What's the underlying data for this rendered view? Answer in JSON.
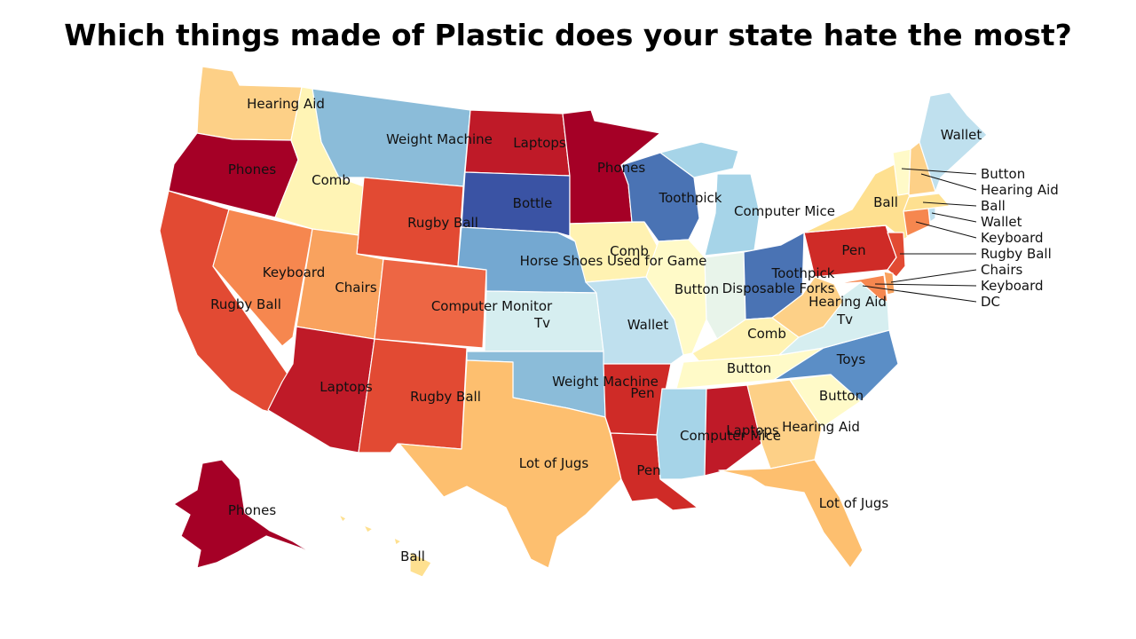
{
  "title": "Which things made of Plastic does your state hate the most?",
  "colors": {
    "dark_red": "#a50026",
    "red": "#c0232a",
    "red_orange": "#e24a33",
    "orange": "#f46d43",
    "light_orange": "#f89c5b",
    "tan": "#fdbf6f",
    "light_yellow": "#fee090",
    "pale_yellow": "#fff4b5",
    "pale_blue": "#d6eef0",
    "light_blue": "#a6d4e8",
    "blue": "#74add1",
    "mid_blue": "#4f86c1",
    "dark_blue": "#3a53a4"
  },
  "states": {
    "WA": {
      "item": "Hearing Aid",
      "color": "#fdd087"
    },
    "OR": {
      "item": "Phones",
      "color": "#a50026"
    },
    "CA": {
      "item": "Rugby Ball",
      "color": "#e24a33"
    },
    "ID": {
      "item": "Comb",
      "color": "#fff4b5"
    },
    "NV": {
      "item": "Keyboard",
      "color": "#f6874f"
    },
    "MT": {
      "item": "Weight Machine",
      "color": "#8bbcd9"
    },
    "WY": {
      "item": "Rugby Ball",
      "color": "#e24a33"
    },
    "UT": {
      "item": "Chairs",
      "color": "#f9a25e"
    },
    "AZ": {
      "item": "Laptops",
      "color": "#bf1a28"
    },
    "CO": {
      "item": "Computer Monitor",
      "color": "#ed6644"
    },
    "NM": {
      "item": "Rugby Ball",
      "color": "#e24a33"
    },
    "ND": {
      "item": "Laptops",
      "color": "#bf1a28"
    },
    "SD": {
      "item": "Bottle",
      "color": "#3a53a4"
    },
    "NE": {
      "item": "Horse Shoes Used for Game",
      "color": "#74a8d1"
    },
    "KS": {
      "item": "Tv",
      "color": "#d6eef0"
    },
    "OK": {
      "item": "Weight Machine",
      "color": "#8bbcd9"
    },
    "TX": {
      "item": "Lot of Jugs",
      "color": "#fdbf6f"
    },
    "MN": {
      "item": "Phones",
      "color": "#a50026"
    },
    "IA": {
      "item": "Comb",
      "color": "#fff2b2"
    },
    "MO": {
      "item": "Wallet",
      "color": "#bfe0ee"
    },
    "AR": {
      "item": "Pen",
      "color": "#cf2b27"
    },
    "LA": {
      "item": "Pen",
      "color": "#cf2b27"
    },
    "WI": {
      "item": "Toothpick",
      "color": "#4a73b4"
    },
    "IL": {
      "item": "Button",
      "color": "#fffac8"
    },
    "MI": {
      "item": "Computer Mice",
      "color": "#a6d4e8"
    },
    "IN": {
      "item": "Disposable Forks",
      "color": "#e8f4ea"
    },
    "OH": {
      "item": "Toothpick",
      "color": "#4a73b4"
    },
    "KY": {
      "item": "Comb",
      "color": "#fff2b2"
    },
    "TN": {
      "item": "Button",
      "color": "#fffac8"
    },
    "MS": {
      "item": "Computer Mice",
      "color": "#a6d4e8"
    },
    "AL": {
      "item": "Laptops",
      "color": "#bf1a28"
    },
    "GA": {
      "item": "Hearing Aid",
      "color": "#fdd087"
    },
    "FL": {
      "item": "Lot of Jugs",
      "color": "#fdbf6f"
    },
    "SC": {
      "item": "Button",
      "color": "#fffac8"
    },
    "NC": {
      "item": "Toys",
      "color": "#5b8ec6"
    },
    "VA": {
      "item": "Tv",
      "color": "#d6eef0"
    },
    "WV": {
      "item": "Hearing Aid",
      "color": "#fdd087"
    },
    "PA": {
      "item": "Pen",
      "color": "#cf2b27"
    },
    "NY": {
      "item": "Ball",
      "color": "#fee090"
    },
    "ME": {
      "item": "Wallet",
      "color": "#bfe0ee"
    },
    "AK": {
      "item": "Phones",
      "color": "#a50026"
    },
    "HI": {
      "item": "Ball",
      "color": "#fee090"
    }
  },
  "northeast_labels": [
    {
      "state": "VT",
      "item": "Button",
      "color": "#fffac8"
    },
    {
      "state": "NH",
      "item": "Hearing Aid",
      "color": "#fdd087"
    },
    {
      "state": "MA",
      "item": "Ball",
      "color": "#fee090"
    },
    {
      "state": "RI",
      "item": "Wallet",
      "color": "#bfe0ee"
    },
    {
      "state": "CT",
      "item": "Keyboard",
      "color": "#f6874f"
    },
    {
      "state": "NJ",
      "item": "Rugby Ball",
      "color": "#e24a33"
    },
    {
      "state": "DE",
      "item": "Chairs",
      "color": "#f9a25e"
    },
    {
      "state": "MD",
      "item": "Keyboard",
      "color": "#f6874f"
    },
    {
      "state": "DC",
      "item": "DC",
      "color": "#e24a33"
    }
  ]
}
